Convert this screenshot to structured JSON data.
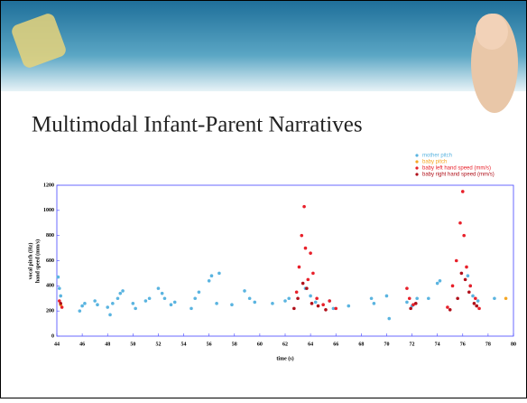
{
  "chart_data": {
    "type": "scatter",
    "title": "Multimodal Infant-Parent Narratives",
    "xlabel": "time (s)",
    "ylabel": [
      "vocal pitch (Hz)",
      "hand speed (mm/s)"
    ],
    "xlim": [
      44,
      80
    ],
    "xticks": [
      44,
      46,
      48,
      50,
      52,
      54,
      56,
      58,
      60,
      62,
      64,
      66,
      68,
      70,
      72,
      74,
      76,
      78,
      80
    ],
    "ylim": [
      0,
      1200
    ],
    "yticks": [
      0,
      200,
      400,
      600,
      800,
      1000,
      1200
    ],
    "legend": "top-right",
    "series": [
      {
        "name": "mother pitch",
        "color": "#5ab4e0",
        "x": [
          44.1,
          44.2,
          44.3,
          45.8,
          46.0,
          46.2,
          47.0,
          47.2,
          48.0,
          48.2,
          48.4,
          48.8,
          49.0,
          49.2,
          50.0,
          50.2,
          51.0,
          51.3,
          52.0,
          52.3,
          52.5,
          53.0,
          53.3,
          54.6,
          54.9,
          55.2,
          56.0,
          56.2,
          56.6,
          56.8,
          57.8,
          58.8,
          59.2,
          59.6,
          61.0,
          62.0,
          62.3,
          63.6,
          64.0,
          64.4,
          65.5,
          65.8,
          67.0,
          68.8,
          69.0,
          70.0,
          70.2,
          71.6,
          72.0,
          72.4,
          73.3,
          74.0,
          74.2,
          76.4,
          76.6,
          76.8,
          77.2,
          78.5
        ],
        "values": [
          470,
          380,
          320,
          200,
          240,
          260,
          280,
          250,
          230,
          170,
          260,
          300,
          340,
          360,
          260,
          220,
          280,
          300,
          380,
          340,
          300,
          250,
          270,
          220,
          300,
          350,
          440,
          480,
          260,
          500,
          250,
          360,
          300,
          270,
          260,
          280,
          300,
          380,
          320,
          270,
          280,
          220,
          240,
          300,
          260,
          320,
          140,
          270,
          240,
          300,
          300,
          420,
          440,
          480,
          400,
          320,
          280,
          300
        ]
      },
      {
        "name": "baby pitch",
        "color": "#f5a623",
        "x": [
          44.3,
          79.4
        ],
        "values": [
          250,
          300
        ]
      },
      {
        "name": "baby left hand speed (mm/s)",
        "color": "#e8202a",
        "x": [
          44.2,
          44.4,
          62.9,
          63.1,
          63.3,
          63.5,
          63.6,
          63.8,
          64.0,
          64.2,
          64.5,
          65.0,
          65.5,
          66.0,
          71.6,
          71.8,
          72.1,
          74.8,
          75.2,
          75.5,
          75.8,
          76.0,
          76.1,
          76.3,
          76.6,
          77.0,
          77.3
        ],
        "values": [
          280,
          230,
          350,
          550,
          800,
          1030,
          700,
          450,
          660,
          500,
          300,
          250,
          280,
          220,
          380,
          300,
          250,
          230,
          400,
          600,
          900,
          1150,
          800,
          550,
          400,
          300,
          220
        ]
      },
      {
        "name": "baby right hand speed (mm/s)",
        "color": "#b0101a",
        "x": [
          44.3,
          62.7,
          63.0,
          63.4,
          63.7,
          64.1,
          64.6,
          65.2,
          71.9,
          72.3,
          75.0,
          75.6,
          75.9,
          76.2,
          76.5,
          76.9,
          77.1
        ],
        "values": [
          260,
          220,
          300,
          420,
          380,
          260,
          240,
          210,
          220,
          260,
          210,
          300,
          500,
          450,
          350,
          260,
          240
        ]
      }
    ]
  }
}
